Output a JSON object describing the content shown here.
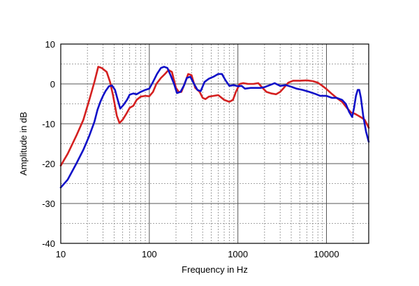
{
  "chart_data": {
    "type": "line",
    "xlabel": "Frequency in Hz",
    "ylabel": "Amplitude in dB",
    "x_scale": "log",
    "xlim": [
      10,
      30000
    ],
    "ylim": [
      -40,
      10
    ],
    "x_ticks": [
      {
        "value": 10,
        "label": "10"
      },
      {
        "value": 100,
        "label": "100"
      },
      {
        "value": 1000,
        "label": "1000"
      },
      {
        "value": 10000,
        "label": "10000"
      }
    ],
    "y_ticks": [
      {
        "value": 10,
        "label": "10"
      },
      {
        "value": 0,
        "label": "0"
      },
      {
        "value": -10,
        "label": "-10"
      },
      {
        "value": -20,
        "label": "-20"
      },
      {
        "value": -30,
        "label": "-30"
      },
      {
        "value": -40,
        "label": "-40"
      }
    ],
    "y_minor_step": 5,
    "grid": true,
    "legend": "none",
    "series": [
      {
        "color": "#d42020",
        "points": [
          [
            10,
            -20.5
          ],
          [
            12,
            -17.5
          ],
          [
            15,
            -13
          ],
          [
            18,
            -9
          ],
          [
            21,
            -4
          ],
          [
            24,
            0.5
          ],
          [
            26.5,
            4.3
          ],
          [
            29,
            4
          ],
          [
            33,
            3
          ],
          [
            36,
            0.5
          ],
          [
            39,
            -3
          ],
          [
            43,
            -8
          ],
          [
            46,
            -9.8
          ],
          [
            50,
            -9
          ],
          [
            55,
            -7.5
          ],
          [
            60,
            -6
          ],
          [
            66,
            -5.5
          ],
          [
            72,
            -4
          ],
          [
            80,
            -3.2
          ],
          [
            90,
            -3
          ],
          [
            100,
            -3.1
          ],
          [
            110,
            -2
          ],
          [
            120,
            0
          ],
          [
            135,
            1.5
          ],
          [
            150,
            2.5
          ],
          [
            165,
            3.5
          ],
          [
            180,
            3
          ],
          [
            200,
            -1
          ],
          [
            215,
            -2
          ],
          [
            230,
            -2
          ],
          [
            250,
            0
          ],
          [
            275,
            2.5
          ],
          [
            300,
            2.2
          ],
          [
            330,
            -1
          ],
          [
            370,
            -2
          ],
          [
            400,
            -3.5
          ],
          [
            430,
            -3.8
          ],
          [
            470,
            -3.2
          ],
          [
            530,
            -3
          ],
          [
            600,
            -2.8
          ],
          [
            700,
            -4
          ],
          [
            800,
            -4.5
          ],
          [
            880,
            -4
          ],
          [
            950,
            -2
          ],
          [
            1050,
            0
          ],
          [
            1150,
            0.2
          ],
          [
            1300,
            0
          ],
          [
            1500,
            0
          ],
          [
            1700,
            0.2
          ],
          [
            1900,
            -1
          ],
          [
            2100,
            -2
          ],
          [
            2400,
            -2.4
          ],
          [
            2700,
            -2.6
          ],
          [
            3000,
            -2
          ],
          [
            3300,
            -1
          ],
          [
            3700,
            0.3
          ],
          [
            4200,
            0.8
          ],
          [
            5000,
            0.8
          ],
          [
            6000,
            0.9
          ],
          [
            7000,
            0.7
          ],
          [
            8000,
            0.3
          ],
          [
            9000,
            -0.5
          ],
          [
            10000,
            -1.3
          ],
          [
            11500,
            -2.5
          ],
          [
            13000,
            -3.5
          ],
          [
            15000,
            -4.5
          ],
          [
            17000,
            -6
          ],
          [
            19000,
            -7.2
          ],
          [
            21000,
            -7.5
          ],
          [
            23000,
            -8
          ],
          [
            25000,
            -8.5
          ],
          [
            27000,
            -9
          ],
          [
            30000,
            -11
          ]
        ]
      },
      {
        "color": "#1010c8",
        "points": [
          [
            10,
            -26
          ],
          [
            12,
            -24
          ],
          [
            15,
            -20
          ],
          [
            18,
            -16.5
          ],
          [
            21,
            -13
          ],
          [
            24,
            -9.5
          ],
          [
            26,
            -6.5
          ],
          [
            28,
            -4.5
          ],
          [
            30,
            -3
          ],
          [
            32,
            -1.8
          ],
          [
            35,
            -0.6
          ],
          [
            38,
            -0.4
          ],
          [
            41,
            -1.5
          ],
          [
            44,
            -4
          ],
          [
            47,
            -6.2
          ],
          [
            51,
            -5.3
          ],
          [
            56,
            -4
          ],
          [
            60,
            -2.7
          ],
          [
            66,
            -2.4
          ],
          [
            72,
            -2.6
          ],
          [
            80,
            -2
          ],
          [
            90,
            -1.5
          ],
          [
            100,
            -1.2
          ],
          [
            110,
            0.5
          ],
          [
            122,
            2.5
          ],
          [
            135,
            4
          ],
          [
            147,
            4.3
          ],
          [
            160,
            4
          ],
          [
            175,
            2
          ],
          [
            190,
            0
          ],
          [
            205,
            -2.3
          ],
          [
            225,
            -2
          ],
          [
            245,
            -0.5
          ],
          [
            265,
            1.5
          ],
          [
            290,
            1.8
          ],
          [
            320,
            0
          ],
          [
            350,
            -1.5
          ],
          [
            380,
            -1.8
          ],
          [
            420,
            0.5
          ],
          [
            470,
            1.3
          ],
          [
            530,
            1.8
          ],
          [
            600,
            2.5
          ],
          [
            660,
            2.5
          ],
          [
            720,
            1
          ],
          [
            800,
            -0.5
          ],
          [
            900,
            -0.3
          ],
          [
            1000,
            -0.6
          ],
          [
            1100,
            -0.5
          ],
          [
            1200,
            -1.2
          ],
          [
            1400,
            -1
          ],
          [
            1600,
            -1
          ],
          [
            1800,
            -1
          ],
          [
            2000,
            -0.8
          ],
          [
            2300,
            -0.3
          ],
          [
            2600,
            0.2
          ],
          [
            3000,
            -0.5
          ],
          [
            3500,
            -0.3
          ],
          [
            4000,
            -0.7
          ],
          [
            4600,
            -1.2
          ],
          [
            5400,
            -1.5
          ],
          [
            6400,
            -2
          ],
          [
            7500,
            -2.5
          ],
          [
            8500,
            -3
          ],
          [
            10000,
            -3
          ],
          [
            11500,
            -3.5
          ],
          [
            13000,
            -3.5
          ],
          [
            15000,
            -4
          ],
          [
            16500,
            -5
          ],
          [
            18000,
            -7
          ],
          [
            19500,
            -8.3
          ],
          [
            20500,
            -6
          ],
          [
            21500,
            -3
          ],
          [
            22500,
            -1.5
          ],
          [
            23500,
            -1.5
          ],
          [
            24500,
            -3.5
          ],
          [
            26000,
            -8
          ],
          [
            28000,
            -12
          ],
          [
            30000,
            -14.5
          ]
        ]
      }
    ]
  }
}
